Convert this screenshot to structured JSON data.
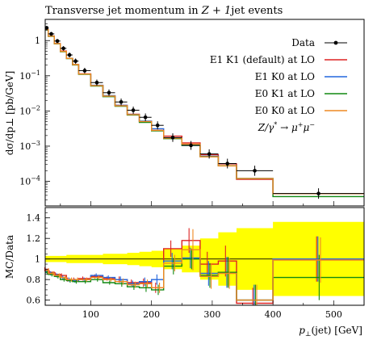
{
  "chart_data": {
    "type": "line",
    "title": "Transverse jet momentum in Z + 1jet events",
    "title_parts": {
      "pre": "Transverse jet momentum in ",
      "math": "Z + 1",
      "post": "jet events"
    },
    "xlabel": "p⊥(jet) [GeV]",
    "xlabel_parts": {
      "math": "p",
      "sub": "⊥",
      "post": "(jet) [GeV]"
    },
    "ylabel": "dσ/dp⊥ [pb/GeV]",
    "ylabel_ratio": "MC/Data",
    "xlim": [
      25,
      550
    ],
    "ylim": [
      2e-05,
      4
    ],
    "ylim_ratio": [
      0.55,
      1.5
    ],
    "y_scale": "log",
    "x_ticks": [
      100,
      200,
      300,
      400,
      500
    ],
    "x_tick_labels": [
      "100",
      "200",
      "300",
      "400",
      "500"
    ],
    "y_ticks": [
      1,
      0.1,
      0.01,
      0.001,
      0.0001
    ],
    "y_tick_labels": [
      {
        "base": "1",
        "exp": ""
      },
      {
        "base": "10",
        "exp": "−1"
      },
      {
        "base": "10",
        "exp": "−2"
      },
      {
        "base": "10",
        "exp": "−3"
      },
      {
        "base": "10",
        "exp": "−4"
      }
    ],
    "ratio_ticks": [
      0.6,
      0.8,
      1.0,
      1.2,
      1.4
    ],
    "ratio_tick_labels": [
      "0.6",
      "0.8",
      "1",
      "1.2",
      "1.4"
    ],
    "legend_position": "top-right",
    "process_label": "Z/γ* → μ+μ−",
    "process_parts": {
      "a": "Z/γ",
      "star": "*",
      "arrow": " → μ",
      "p": "+",
      "b": "μ",
      "m": "−"
    },
    "bin_edges": [
      25,
      30,
      40,
      50,
      60,
      70,
      80,
      100,
      120,
      140,
      160,
      180,
      200,
      220,
      250,
      280,
      310,
      340,
      400,
      550
    ],
    "data": {
      "name": "Data",
      "color": "#000000",
      "y": [
        2.3,
        1.55,
        0.97,
        0.6,
        0.39,
        0.26,
        0.14,
        0.064,
        0.033,
        0.018,
        0.0105,
        0.0066,
        0.0039,
        0.00175,
        0.00105,
        0.0006,
        0.00032,
        0.0002,
        4.5e-05
      ],
      "ratio_band_hi": [
        1.03,
        1.03,
        1.03,
        1.03,
        1.04,
        1.04,
        1.04,
        1.04,
        1.05,
        1.05,
        1.06,
        1.07,
        1.08,
        1.1,
        1.13,
        1.2,
        1.26,
        1.3,
        1.36
      ],
      "ratio_band_lo": [
        0.97,
        0.97,
        0.97,
        0.97,
        0.96,
        0.96,
        0.96,
        0.96,
        0.95,
        0.95,
        0.94,
        0.93,
        0.92,
        0.9,
        0.87,
        0.8,
        0.74,
        0.7,
        0.64
      ]
    },
    "series": [
      {
        "name": "E1 K1 (default) at LO",
        "color": "#dd2222",
        "ratio": [
          0.9,
          0.87,
          0.85,
          0.84,
          0.8,
          0.8,
          0.81,
          0.83,
          0.81,
          0.8,
          0.77,
          0.77,
          0.72,
          1.1,
          1.18,
          0.95,
          0.98,
          0.57,
          1.0
        ],
        "ratio_err": [
          0.02,
          0.02,
          0.02,
          0.02,
          0.02,
          0.02,
          0.02,
          0.02,
          0.02,
          0.03,
          0.03,
          0.04,
          0.05,
          0.08,
          0.12,
          0.12,
          0.15,
          0.15,
          0.22
        ]
      },
      {
        "name": "E1 K0 at LO",
        "color": "#2266dd",
        "ratio": [
          0.88,
          0.86,
          0.84,
          0.82,
          0.8,
          0.79,
          0.8,
          0.84,
          0.82,
          0.8,
          0.76,
          0.78,
          0.8,
          0.98,
          1.01,
          0.86,
          0.87,
          0.6,
          1.0
        ],
        "ratio_err": [
          0.02,
          0.02,
          0.02,
          0.02,
          0.02,
          0.02,
          0.02,
          0.02,
          0.02,
          0.03,
          0.03,
          0.04,
          0.05,
          0.08,
          0.1,
          0.12,
          0.15,
          0.15,
          0.22
        ]
      },
      {
        "name": "E0 K1 at LO",
        "color": "#118811",
        "ratio": [
          0.87,
          0.85,
          0.83,
          0.8,
          0.79,
          0.78,
          0.78,
          0.8,
          0.77,
          0.76,
          0.73,
          0.72,
          0.7,
          0.93,
          1.0,
          0.84,
          0.87,
          0.6,
          0.82
        ],
        "ratio_err": [
          0.02,
          0.02,
          0.02,
          0.02,
          0.02,
          0.02,
          0.02,
          0.02,
          0.02,
          0.03,
          0.03,
          0.04,
          0.05,
          0.08,
          0.1,
          0.12,
          0.15,
          0.15,
          0.22
        ]
      },
      {
        "name": "E0 K0 at LO",
        "color": "#ee8822",
        "ratio": [
          0.89,
          0.86,
          0.84,
          0.82,
          0.8,
          0.8,
          0.8,
          0.82,
          0.8,
          0.78,
          0.75,
          0.76,
          0.72,
          0.96,
          1.09,
          0.83,
          0.86,
          0.6,
          0.99
        ],
        "ratio_err": [
          0.02,
          0.02,
          0.02,
          0.02,
          0.02,
          0.02,
          0.02,
          0.02,
          0.02,
          0.03,
          0.03,
          0.04,
          0.05,
          0.08,
          0.2,
          0.12,
          0.15,
          0.15,
          0.22
        ]
      }
    ]
  }
}
